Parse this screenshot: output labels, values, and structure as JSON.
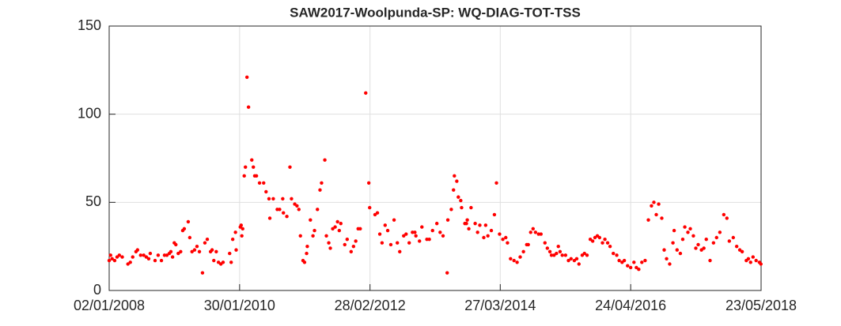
{
  "chart_data": {
    "type": "scatter",
    "title": "SAW2017-Woolpunda-SP: WQ-DIAG-TOT-TSS",
    "color": "#ff0000",
    "grid": true,
    "xlim": [
      "2008-01-02",
      "2018-05-23"
    ],
    "xticks": [
      {
        "value": "2008-01-02",
        "label": "02/01/2008"
      },
      {
        "value": "2010-01-30",
        "label": "30/01/2010"
      },
      {
        "value": "2012-02-28",
        "label": "28/02/2012"
      },
      {
        "value": "2014-03-27",
        "label": "27/03/2014"
      },
      {
        "value": "2016-04-24",
        "label": "24/04/2016"
      },
      {
        "value": "2018-05-23",
        "label": "23/05/2018"
      }
    ],
    "ylim": [
      0,
      150
    ],
    "yticks": [
      0,
      50,
      100,
      150
    ],
    "x": [
      "2008-01-02",
      "2008-01-10",
      "2008-01-19",
      "2008-02-03",
      "2008-02-17",
      "2008-03-01",
      "2008-03-18",
      "2008-04-20",
      "2008-05-04",
      "2008-05-18",
      "2008-06-06",
      "2008-06-15",
      "2008-07-03",
      "2008-07-21",
      "2008-08-05",
      "2008-08-19",
      "2008-08-28",
      "2008-09-25",
      "2008-10-13",
      "2008-11-01",
      "2008-11-19",
      "2008-12-03",
      "2008-12-17",
      "2008-12-26",
      "2009-01-05",
      "2009-01-15",
      "2009-01-24",
      "2009-02-07",
      "2009-02-21",
      "2009-03-05",
      "2009-03-14",
      "2009-04-06",
      "2009-04-15",
      "2009-04-28",
      "2009-05-13",
      "2009-05-27",
      "2009-06-10",
      "2009-06-28",
      "2009-07-12",
      "2009-07-26",
      "2009-08-14",
      "2009-08-23",
      "2009-09-02",
      "2009-09-16",
      "2009-09-29",
      "2009-10-13",
      "2009-10-26",
      "2009-12-03",
      "2009-12-12",
      "2009-12-21",
      "2010-01-06",
      "2010-01-10",
      "2010-02-03",
      "2010-02-08",
      "2010-02-12",
      "2010-02-17",
      "2010-02-26",
      "2010-03-05",
      "2010-03-14",
      "2010-03-23",
      "2010-04-11",
      "2010-04-20",
      "2010-04-28",
      "2010-05-08",
      "2010-05-26",
      "2010-06-19",
      "2010-07-03",
      "2010-07-20",
      "2010-07-25",
      "2010-08-14",
      "2010-09-06",
      "2010-09-20",
      "2010-10-08",
      "2010-10-12",
      "2010-11-01",
      "2010-11-19",
      "2010-11-28",
      "2010-12-17",
      "2010-12-30",
      "2011-01-10",
      "2011-01-19",
      "2011-02-03",
      "2011-02-12",
      "2011-02-24",
      "2011-02-28",
      "2011-03-18",
      "2011-04-02",
      "2011-04-11",
      "2011-04-28",
      "2011-05-13",
      "2011-05-22",
      "2011-06-10",
      "2011-06-19",
      "2011-07-03",
      "2011-07-12",
      "2011-07-26",
      "2011-08-09",
      "2011-08-23",
      "2011-09-02",
      "2011-09-11",
      "2011-10-04",
      "2011-10-18",
      "2011-11-10",
      "2011-11-24",
      "2011-12-07",
      "2011-12-21",
      "2012-01-02",
      "2012-02-03",
      "2012-02-21",
      "2012-02-26",
      "2012-03-28",
      "2012-04-11",
      "2012-04-25",
      "2012-05-08",
      "2012-05-26",
      "2012-06-10",
      "2012-06-28",
      "2012-07-17",
      "2012-08-05",
      "2012-08-19",
      "2012-09-11",
      "2012-09-25",
      "2012-10-13",
      "2012-11-01",
      "2012-11-15",
      "2012-11-21",
      "2012-12-12",
      "2012-12-26",
      "2013-01-24",
      "2013-02-07",
      "2013-02-26",
      "2013-03-23",
      "2013-04-11",
      "2013-04-28",
      "2013-05-22",
      "2013-05-26",
      "2013-06-15",
      "2013-06-28",
      "2013-07-03",
      "2013-07-17",
      "2013-07-26",
      "2013-08-09",
      "2013-08-14",
      "2013-09-02",
      "2013-09-11",
      "2013-09-16",
      "2013-09-25",
      "2013-10-08",
      "2013-11-01",
      "2013-11-15",
      "2013-11-28",
      "2013-12-21",
      "2014-01-01",
      "2014-01-14",
      "2014-02-03",
      "2014-02-21",
      "2014-03-05",
      "2014-03-23",
      "2014-04-11",
      "2014-04-28",
      "2014-05-08",
      "2014-05-26",
      "2014-06-15",
      "2014-07-03",
      "2014-07-21",
      "2014-08-09",
      "2014-08-28",
      "2014-09-06",
      "2014-09-20",
      "2014-10-04",
      "2014-10-18",
      "2014-11-05",
      "2014-11-19",
      "2014-12-12",
      "2014-12-26",
      "2015-01-10",
      "2015-01-19",
      "2015-02-03",
      "2015-02-17",
      "2015-02-28",
      "2015-03-10",
      "2015-03-23",
      "2015-04-11",
      "2015-04-28",
      "2015-05-13",
      "2015-06-01",
      "2015-06-15",
      "2015-06-28",
      "2015-07-17",
      "2015-07-30",
      "2015-08-14",
      "2015-09-02",
      "2015-09-16",
      "2015-09-29",
      "2015-10-13",
      "2015-10-26",
      "2015-11-12",
      "2015-11-26",
      "2015-12-12",
      "2015-12-26",
      "2016-01-14",
      "2016-02-03",
      "2016-02-17",
      "2016-03-05",
      "2016-03-18",
      "2016-04-06",
      "2016-04-24",
      "2016-05-13",
      "2016-05-27",
      "2016-06-10",
      "2016-06-28",
      "2016-07-17",
      "2016-08-05",
      "2016-08-23",
      "2016-09-06",
      "2016-09-20",
      "2016-10-04",
      "2016-10-22",
      "2016-11-05",
      "2016-11-19",
      "2016-12-07",
      "2016-12-26",
      "2017-01-02",
      "2017-01-19",
      "2017-02-07",
      "2017-02-21",
      "2017-03-05",
      "2017-03-23",
      "2017-04-06",
      "2017-04-24",
      "2017-05-08",
      "2017-05-22",
      "2017-06-10",
      "2017-06-24",
      "2017-07-08",
      "2017-07-30",
      "2017-08-19",
      "2017-09-06",
      "2017-09-25",
      "2017-10-18",
      "2017-11-05",
      "2017-11-19",
      "2017-12-12",
      "2018-01-01",
      "2018-01-19",
      "2018-02-02",
      "2018-02-26",
      "2018-03-10",
      "2018-03-23",
      "2018-04-06",
      "2018-04-24",
      "2018-05-13",
      "2018-05-22"
    ],
    "values": [
      17,
      20,
      18,
      17,
      19,
      20,
      19,
      15,
      16,
      19,
      22,
      23,
      20,
      20,
      19,
      18,
      21,
      17,
      20,
      17,
      20,
      20,
      21,
      22,
      19,
      27,
      26,
      21,
      22,
      34,
      35,
      39,
      30,
      22,
      23,
      25,
      22,
      10,
      27,
      29,
      22,
      23,
      17,
      22,
      16,
      15,
      16,
      21,
      16,
      29,
      33,
      23,
      36,
      37,
      31,
      35,
      65,
      70,
      121,
      104,
      74,
      70,
      65,
      65,
      61,
      61,
      56,
      52,
      41,
      52,
      46,
      46,
      52,
      44,
      42,
      70,
      52,
      49,
      48,
      46,
      31,
      17,
      16,
      21,
      25,
      40,
      31,
      34,
      46,
      57,
      61,
      74,
      31,
      27,
      24,
      35,
      36,
      39,
      34,
      38,
      26,
      29,
      22,
      25,
      28,
      35,
      35,
      112,
      61,
      47,
      43,
      44,
      32,
      27,
      37,
      34,
      26,
      40,
      27,
      22,
      31,
      32,
      27,
      33,
      33,
      31,
      28,
      36,
      29,
      29,
      34,
      38,
      33,
      31,
      10,
      40,
      46,
      57,
      65,
      62,
      53,
      51,
      47,
      38,
      38,
      40,
      35,
      47,
      38,
      33,
      37,
      30,
      37,
      31,
      34,
      43,
      61,
      32,
      29,
      30,
      27,
      18,
      17,
      16,
      19,
      22,
      26,
      26,
      33,
      35,
      33,
      32,
      32,
      27,
      24,
      22,
      20,
      20,
      21,
      25,
      22,
      20,
      20,
      17,
      18,
      17,
      18,
      15,
      20,
      21,
      20,
      29,
      28,
      30,
      31,
      30,
      27,
      29,
      27,
      25,
      21,
      20,
      17,
      16,
      17,
      14,
      13,
      16,
      13,
      12,
      16,
      17,
      40,
      48,
      50,
      43,
      49,
      41,
      23,
      18,
      15,
      27,
      34,
      23,
      21,
      29,
      36,
      33,
      35,
      31,
      24,
      26,
      23,
      24,
      29,
      17,
      27,
      30,
      33,
      43,
      41,
      28,
      30,
      25,
      23,
      22,
      17,
      18,
      16,
      19,
      17,
      16,
      15
    ]
  }
}
